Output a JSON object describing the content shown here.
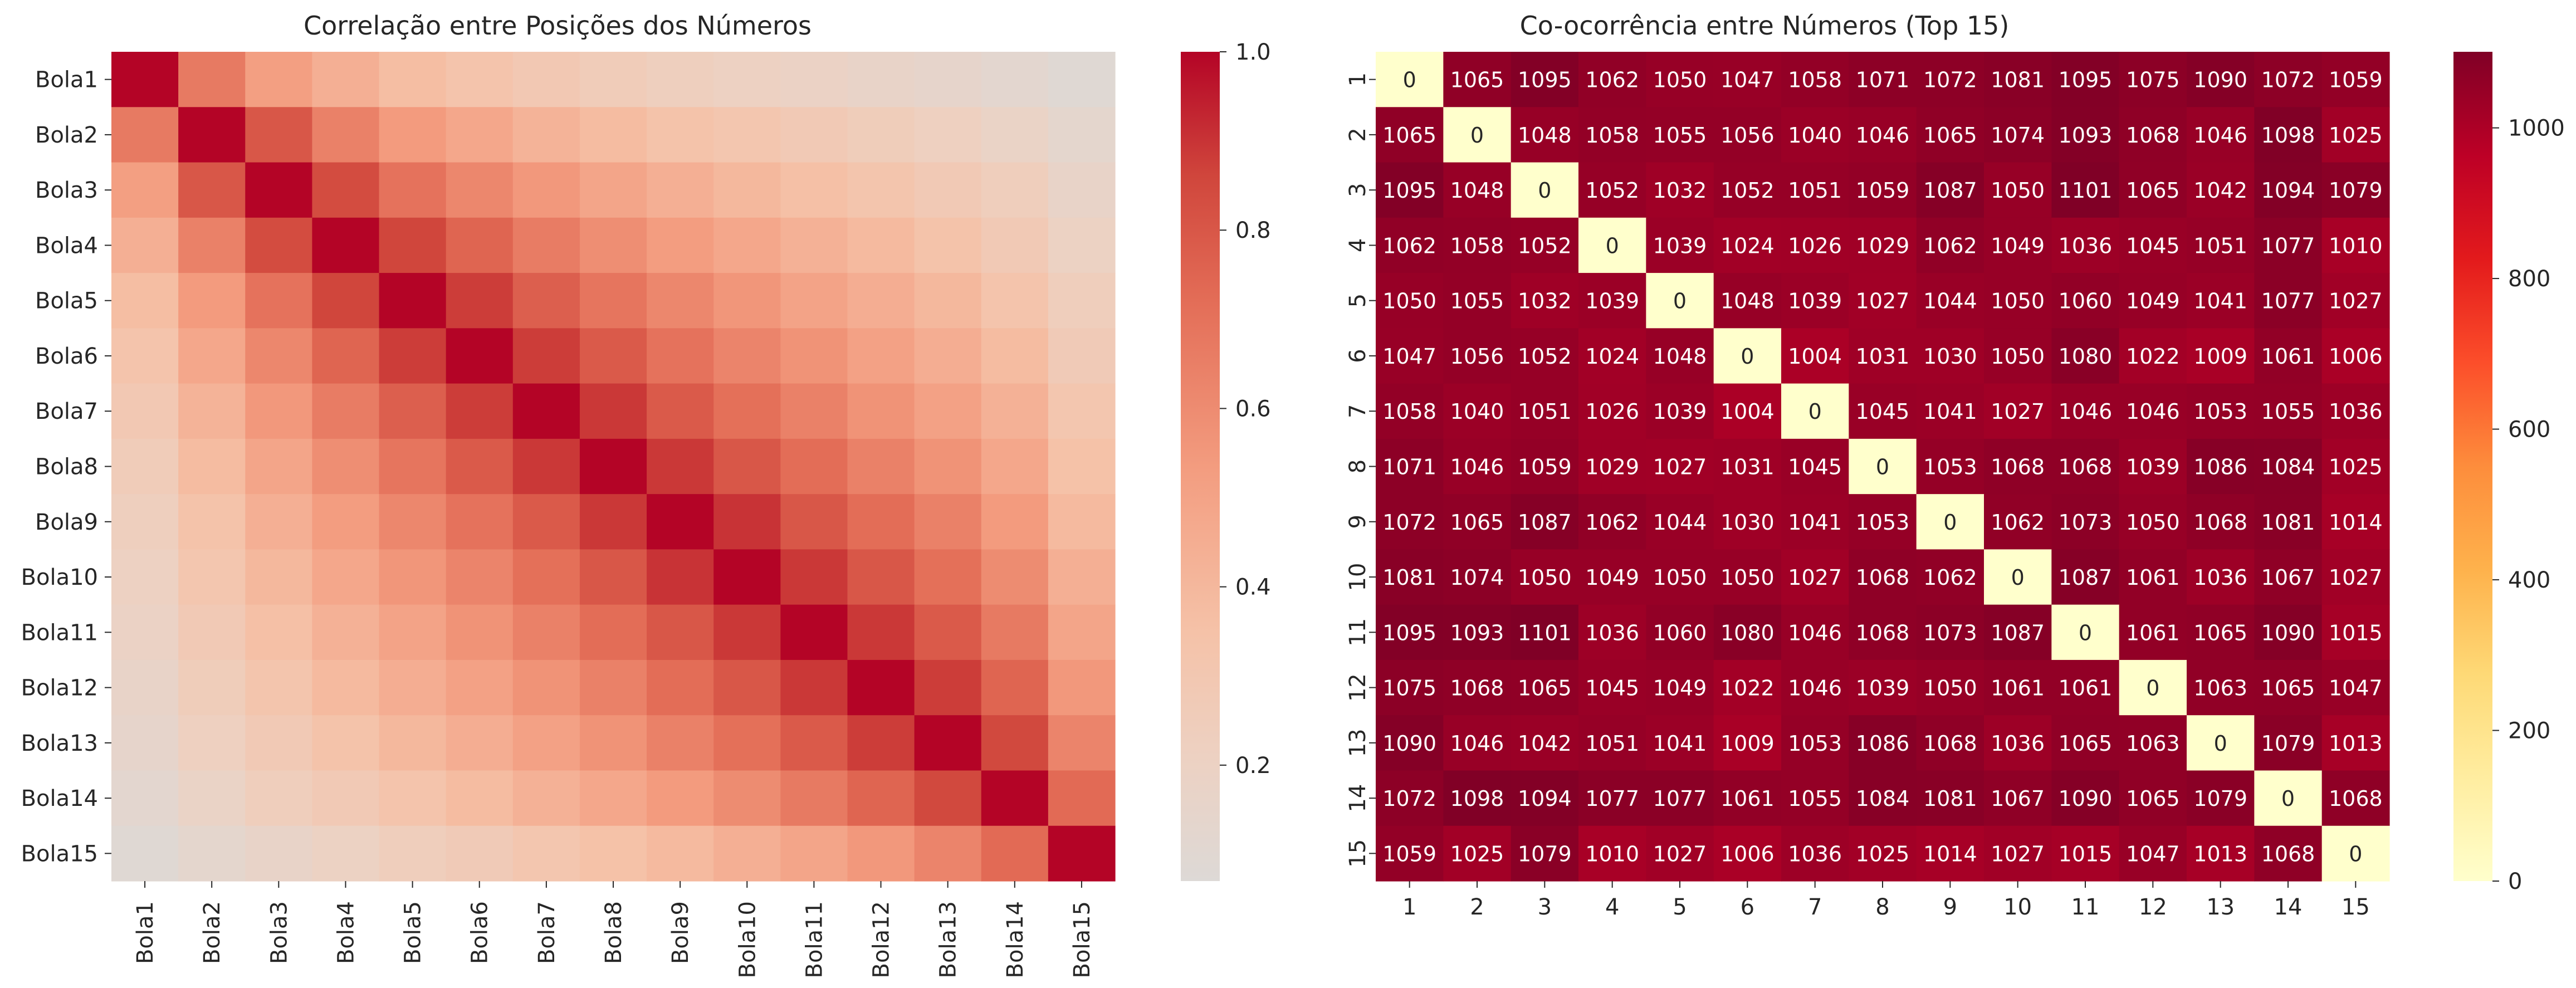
{
  "chart_data": [
    {
      "type": "heatmap",
      "title": "Correlação entre Posições dos Números",
      "x_labels": [
        "Bola1",
        "Bola2",
        "Bola3",
        "Bola4",
        "Bola5",
        "Bola6",
        "Bola7",
        "Bola8",
        "Bola9",
        "Bola10",
        "Bola11",
        "Bola12",
        "Bola13",
        "Bola14",
        "Bola15"
      ],
      "y_labels": [
        "Bola1",
        "Bola2",
        "Bola3",
        "Bola4",
        "Bola5",
        "Bola6",
        "Bola7",
        "Bola8",
        "Bola9",
        "Bola10",
        "Bola11",
        "Bola12",
        "Bola13",
        "Bola14",
        "Bola15"
      ],
      "values": [
        [
          1.0,
          0.67,
          0.52,
          0.44,
          0.37,
          0.33,
          0.29,
          0.26,
          0.23,
          0.21,
          0.19,
          0.17,
          0.15,
          0.12,
          0.09
        ],
        [
          0.67,
          1.0,
          0.8,
          0.64,
          0.54,
          0.48,
          0.42,
          0.38,
          0.34,
          0.31,
          0.28,
          0.25,
          0.22,
          0.18,
          0.13
        ],
        [
          0.52,
          0.8,
          1.0,
          0.84,
          0.7,
          0.62,
          0.55,
          0.49,
          0.44,
          0.4,
          0.36,
          0.32,
          0.28,
          0.24,
          0.17
        ],
        [
          0.44,
          0.64,
          0.84,
          1.0,
          0.86,
          0.75,
          0.66,
          0.59,
          0.53,
          0.48,
          0.43,
          0.39,
          0.34,
          0.28,
          0.2
        ],
        [
          0.37,
          0.54,
          0.7,
          0.86,
          1.0,
          0.88,
          0.77,
          0.69,
          0.62,
          0.56,
          0.5,
          0.45,
          0.4,
          0.33,
          0.24
        ],
        [
          0.33,
          0.48,
          0.62,
          0.75,
          0.88,
          1.0,
          0.88,
          0.79,
          0.7,
          0.63,
          0.57,
          0.51,
          0.45,
          0.38,
          0.27
        ],
        [
          0.29,
          0.42,
          0.55,
          0.66,
          0.77,
          0.88,
          1.0,
          0.89,
          0.79,
          0.71,
          0.64,
          0.57,
          0.51,
          0.43,
          0.31
        ],
        [
          0.26,
          0.38,
          0.49,
          0.59,
          0.69,
          0.79,
          0.89,
          1.0,
          0.89,
          0.8,
          0.72,
          0.64,
          0.57,
          0.48,
          0.35
        ],
        [
          0.23,
          0.34,
          0.44,
          0.53,
          0.62,
          0.7,
          0.79,
          0.89,
          1.0,
          0.9,
          0.8,
          0.72,
          0.64,
          0.54,
          0.39
        ],
        [
          0.21,
          0.31,
          0.4,
          0.48,
          0.56,
          0.63,
          0.71,
          0.8,
          0.9,
          1.0,
          0.89,
          0.8,
          0.71,
          0.6,
          0.44
        ],
        [
          0.19,
          0.28,
          0.36,
          0.43,
          0.5,
          0.57,
          0.64,
          0.72,
          0.8,
          0.89,
          1.0,
          0.89,
          0.79,
          0.67,
          0.49
        ],
        [
          0.17,
          0.25,
          0.32,
          0.39,
          0.45,
          0.51,
          0.57,
          0.64,
          0.72,
          0.8,
          0.89,
          1.0,
          0.88,
          0.75,
          0.55
        ],
        [
          0.15,
          0.22,
          0.28,
          0.34,
          0.4,
          0.45,
          0.51,
          0.57,
          0.64,
          0.71,
          0.79,
          0.88,
          1.0,
          0.85,
          0.63
        ],
        [
          0.12,
          0.18,
          0.24,
          0.28,
          0.33,
          0.38,
          0.43,
          0.48,
          0.54,
          0.6,
          0.67,
          0.75,
          0.85,
          1.0,
          0.73
        ],
        [
          0.09,
          0.13,
          0.17,
          0.2,
          0.24,
          0.27,
          0.31,
          0.35,
          0.39,
          0.44,
          0.49,
          0.55,
          0.63,
          0.73,
          1.0
        ]
      ],
      "vmin": 0.07,
      "vmax": 1.0,
      "colormap": "coolwarm (upper half)",
      "colorbar_ticks": [
        "0.2",
        "0.4",
        "0.6",
        "0.8",
        "1.0"
      ],
      "colorbar_tick_values": [
        0.2,
        0.4,
        0.6,
        0.8,
        1.0
      ],
      "annotated": false
    },
    {
      "type": "heatmap",
      "title": "Co-ocorrência entre Números (Top 15)",
      "x_labels": [
        "1",
        "2",
        "3",
        "4",
        "5",
        "6",
        "7",
        "8",
        "9",
        "10",
        "11",
        "12",
        "13",
        "14",
        "15"
      ],
      "y_labels": [
        "1",
        "2",
        "3",
        "4",
        "5",
        "6",
        "7",
        "8",
        "9",
        "10",
        "11",
        "12",
        "13",
        "14",
        "15"
      ],
      "values": [
        [
          0,
          1065,
          1095,
          1062,
          1050,
          1047,
          1058,
          1071,
          1072,
          1081,
          1095,
          1075,
          1090,
          1072,
          1059
        ],
        [
          1065,
          0,
          1048,
          1058,
          1055,
          1056,
          1040,
          1046,
          1065,
          1074,
          1093,
          1068,
          1046,
          1098,
          1025
        ],
        [
          1095,
          1048,
          0,
          1052,
          1032,
          1052,
          1051,
          1059,
          1087,
          1050,
          1101,
          1065,
          1042,
          1094,
          1079
        ],
        [
          1062,
          1058,
          1052,
          0,
          1039,
          1024,
          1026,
          1029,
          1062,
          1049,
          1036,
          1045,
          1051,
          1077,
          1010
        ],
        [
          1050,
          1055,
          1032,
          1039,
          0,
          1048,
          1039,
          1027,
          1044,
          1050,
          1060,
          1049,
          1041,
          1077,
          1027
        ],
        [
          1047,
          1056,
          1052,
          1024,
          1048,
          0,
          1004,
          1031,
          1030,
          1050,
          1080,
          1022,
          1009,
          1061,
          1006
        ],
        [
          1058,
          1040,
          1051,
          1026,
          1039,
          1004,
          0,
          1045,
          1041,
          1027,
          1046,
          1046,
          1053,
          1055,
          1036
        ],
        [
          1071,
          1046,
          1059,
          1029,
          1027,
          1031,
          1045,
          0,
          1053,
          1068,
          1068,
          1039,
          1086,
          1084,
          1025
        ],
        [
          1072,
          1065,
          1087,
          1062,
          1044,
          1030,
          1041,
          1053,
          0,
          1062,
          1073,
          1050,
          1068,
          1081,
          1014
        ],
        [
          1081,
          1074,
          1050,
          1049,
          1050,
          1050,
          1027,
          1068,
          1062,
          0,
          1087,
          1061,
          1036,
          1067,
          1027
        ],
        [
          1095,
          1093,
          1101,
          1036,
          1060,
          1080,
          1046,
          1068,
          1073,
          1087,
          0,
          1061,
          1065,
          1090,
          1015
        ],
        [
          1075,
          1068,
          1065,
          1045,
          1049,
          1022,
          1046,
          1039,
          1050,
          1061,
          1061,
          0,
          1063,
          1065,
          1047
        ],
        [
          1090,
          1046,
          1042,
          1051,
          1041,
          1009,
          1053,
          1086,
          1068,
          1036,
          1065,
          1063,
          0,
          1079,
          1013
        ],
        [
          1072,
          1098,
          1094,
          1077,
          1077,
          1061,
          1055,
          1084,
          1081,
          1067,
          1090,
          1065,
          1079,
          0,
          1068
        ],
        [
          1059,
          1025,
          1079,
          1010,
          1027,
          1006,
          1036,
          1025,
          1014,
          1027,
          1015,
          1047,
          1013,
          1068,
          0
        ]
      ],
      "vmin": 0,
      "vmax": 1101,
      "colormap": "YlOrRd",
      "colorbar_ticks": [
        "0",
        "200",
        "400",
        "600",
        "800",
        "1000"
      ],
      "colorbar_tick_values": [
        0,
        200,
        400,
        600,
        800,
        1000
      ],
      "annotated": true
    }
  ]
}
